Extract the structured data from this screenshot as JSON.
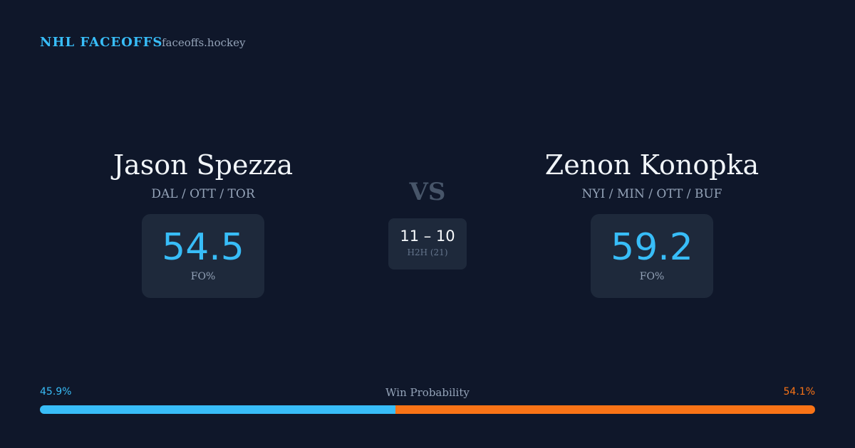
{
  "header": {
    "brand": "NHL FACEOFFS",
    "site": "faceoffs.hockey"
  },
  "players": [
    {
      "name": "Jason Spezza",
      "teams": "DAL / OTT / TOR",
      "stat": 54.5,
      "stat_label": "FO%"
    },
    {
      "name": "Zenon Konopka",
      "teams": "NYI / MIN / OTT / BUF",
      "stat": 59.2,
      "stat_label": "FO%"
    }
  ],
  "versus": {
    "label": "VS",
    "h2h": "11 – 10",
    "h2h_label": "H2H (21)"
  },
  "win_probability": {
    "label": "Win Probability",
    "left": {
      "value": 45.9,
      "label": "45.9%",
      "color": "#38bdf8"
    },
    "right": {
      "value": 54.1,
      "label": "54.1%",
      "color": "#f97316"
    }
  }
}
